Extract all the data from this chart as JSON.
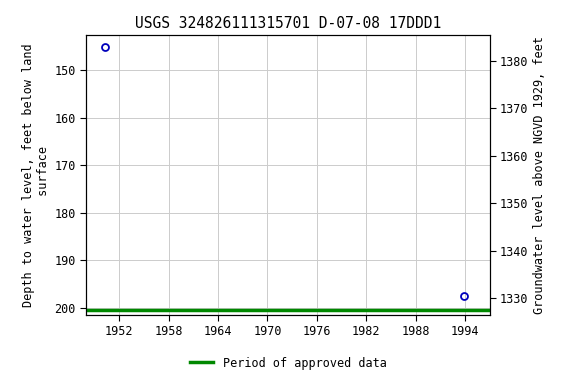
{
  "title": "USGS 324826111315701 D-07-08 17DDD1",
  "ylabel_left": "Depth to water level, feet below land\n surface",
  "ylabel_right": "Groundwater level above NGVD 1929, feet",
  "xlim": [
    1948.0,
    1997.0
  ],
  "ylim_left": [
    201.5,
    142.5
  ],
  "land_elev": 1528.0,
  "xticks": [
    1952,
    1958,
    1964,
    1970,
    1976,
    1982,
    1988,
    1994
  ],
  "yticks_left": [
    150,
    160,
    170,
    180,
    190,
    200
  ],
  "yticks_right": [
    1330,
    1340,
    1350,
    1360,
    1370,
    1380
  ],
  "data_points_x": [
    1950.3,
    1993.9
  ],
  "data_points_y": [
    145.2,
    197.5
  ],
  "point_color": "#0000bb",
  "period_bar_y": 200.5,
  "period_bar_color": "#008800",
  "period_bar_linewidth": 2.5,
  "grid_color": "#cccccc",
  "bg_color": "#ffffff",
  "title_fontsize": 10.5,
  "axis_label_fontsize": 8.5,
  "tick_fontsize": 8.5,
  "legend_label": "Period of approved data",
  "legend_color": "#008800"
}
